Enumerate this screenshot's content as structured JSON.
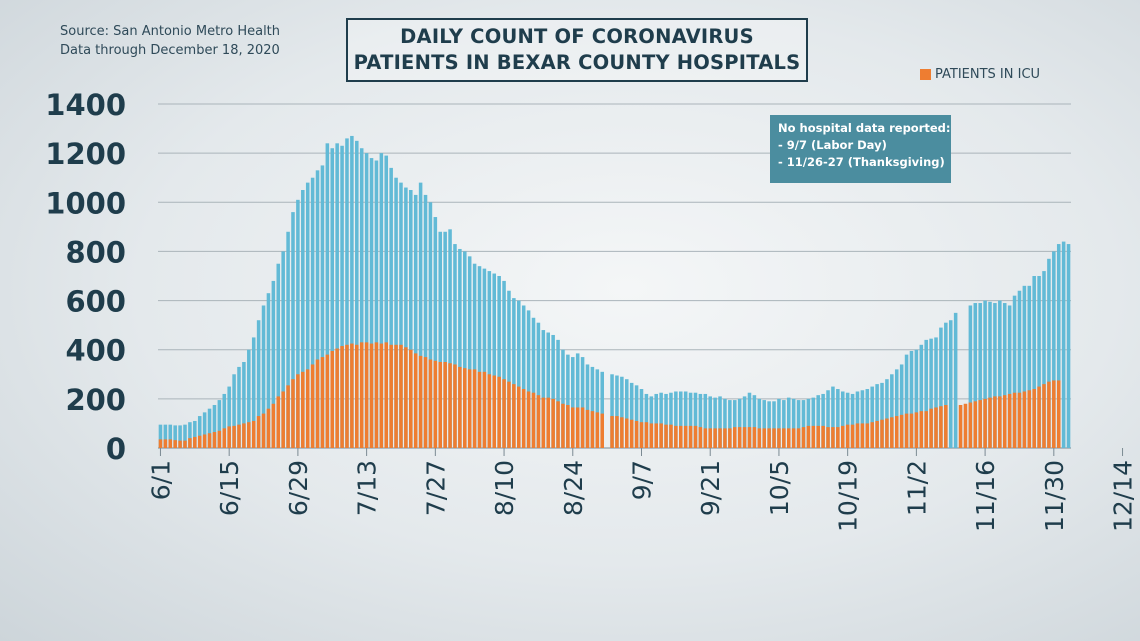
{
  "source": {
    "line1": "Source: San Antonio Metro Health",
    "line2": "Data through December 18, 2020"
  },
  "title": {
    "line1": "DAILY COUNT OF CORONAVIRUS",
    "line2": "PATIENTS IN BEXAR COUNTY HOSPITALS"
  },
  "legend": {
    "icu_label": "PATIENTS IN ICU"
  },
  "note": {
    "heading": "No hospital data reported:",
    "item1": "- 9/7 (Labor Day)",
    "item2": "- 11/26-27 (Thanksgiving)"
  },
  "colors": {
    "total": "#62bad6",
    "icu": "#ee7d31",
    "text": "#1f3d4c"
  },
  "chart_data": {
    "type": "bar",
    "ylim": [
      0,
      1400
    ],
    "yticks": [
      0,
      200,
      400,
      600,
      800,
      1000,
      1200,
      1400
    ],
    "xticks": [
      "6/1",
      "6/15",
      "6/29",
      "7/13",
      "7/27",
      "8/10",
      "8/24",
      "9/7",
      "9/21",
      "10/5",
      "10/19",
      "11/2",
      "11/16",
      "11/30",
      "12/14"
    ],
    "start_date": "6/1",
    "missing_days": [
      "9/7",
      "11/26",
      "11/27"
    ],
    "grid": true,
    "legend_position": "top-right",
    "series": [
      {
        "name": "Total patients",
        "values": [
          95,
          95,
          95,
          92,
          92,
          95,
          105,
          110,
          130,
          145,
          160,
          175,
          195,
          220,
          250,
          300,
          330,
          350,
          400,
          450,
          520,
          580,
          630,
          680,
          750,
          800,
          880,
          960,
          1010,
          1050,
          1080,
          1100,
          1130,
          1150,
          1240,
          1220,
          1240,
          1230,
          1260,
          1270,
          1250,
          1220,
          1200,
          1180,
          1170,
          1200,
          1190,
          1140,
          1100,
          1080,
          1060,
          1050,
          1030,
          1080,
          1030,
          1000,
          940,
          880,
          880,
          890,
          830,
          810,
          800,
          780,
          750,
          740,
          730,
          720,
          710,
          700,
          680,
          640,
          610,
          600,
          580,
          560,
          530,
          510,
          480,
          470,
          460,
          440,
          400,
          380,
          370,
          385,
          370,
          340,
          330,
          320,
          310,
          null,
          300,
          295,
          290,
          280,
          265,
          255,
          240,
          220,
          210,
          220,
          225,
          220,
          225,
          230,
          230,
          230,
          225,
          225,
          220,
          220,
          210,
          205,
          210,
          200,
          195,
          195,
          200,
          210,
          225,
          215,
          200,
          195,
          190,
          190,
          200,
          195,
          205,
          200,
          195,
          195,
          200,
          205,
          215,
          220,
          235,
          250,
          240,
          230,
          225,
          220,
          230,
          235,
          240,
          250,
          260,
          265,
          280,
          300,
          320,
          340,
          380,
          395,
          400,
          420,
          440,
          445,
          450,
          490,
          510,
          520,
          550,
          null,
          null,
          580,
          590,
          590,
          600,
          595,
          590,
          600,
          590,
          580,
          620,
          640,
          660,
          660,
          700,
          700,
          720,
          770,
          800,
          830,
          840,
          830
        ],
        "values_note": "Values in patients; null = no data reported"
      },
      {
        "name": "PATIENTS IN ICU",
        "values": [
          35,
          35,
          35,
          32,
          30,
          30,
          40,
          45,
          50,
          55,
          60,
          65,
          70,
          80,
          88,
          90,
          95,
          100,
          105,
          110,
          130,
          140,
          160,
          180,
          210,
          230,
          255,
          280,
          300,
          310,
          320,
          340,
          360,
          370,
          380,
          395,
          405,
          415,
          420,
          425,
          420,
          430,
          430,
          425,
          430,
          425,
          430,
          420,
          420,
          420,
          410,
          400,
          385,
          375,
          370,
          360,
          355,
          350,
          350,
          345,
          340,
          330,
          325,
          320,
          320,
          310,
          310,
          300,
          295,
          290,
          280,
          270,
          260,
          250,
          240,
          230,
          225,
          215,
          205,
          205,
          200,
          190,
          180,
          175,
          165,
          165,
          165,
          155,
          150,
          145,
          140,
          null,
          130,
          130,
          125,
          120,
          115,
          110,
          105,
          105,
          100,
          100,
          100,
          95,
          95,
          90,
          90,
          90,
          90,
          90,
          85,
          80,
          80,
          80,
          80,
          80,
          80,
          85,
          85,
          85,
          85,
          85,
          80,
          80,
          80,
          80,
          80,
          80,
          80,
          80,
          80,
          85,
          90,
          90,
          90,
          90,
          85,
          85,
          85,
          90,
          95,
          95,
          100,
          100,
          100,
          105,
          110,
          115,
          120,
          125,
          130,
          135,
          140,
          140,
          145,
          150,
          150,
          160,
          165,
          170,
          175,
          null,
          null,
          175,
          180,
          185,
          190,
          195,
          200,
          205,
          210,
          210,
          215,
          220,
          225,
          225,
          230,
          235,
          240,
          250,
          260,
          270,
          275,
          275
        ]
      }
    ]
  }
}
